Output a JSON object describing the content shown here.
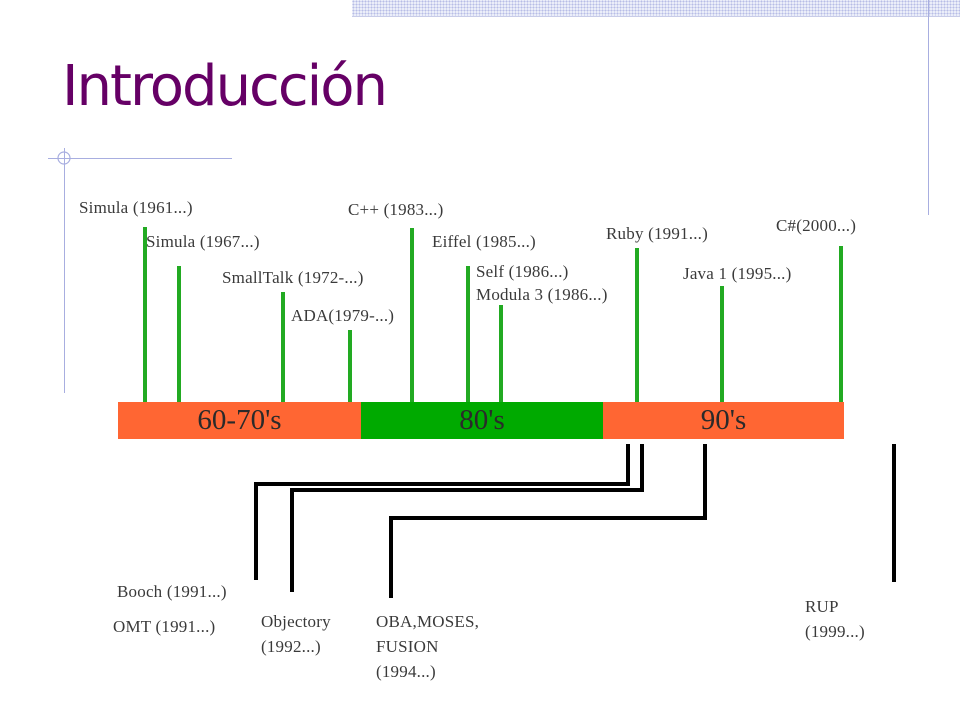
{
  "slide": {
    "title": "Introducción"
  },
  "timeline": {
    "colors": {
      "segment_60_70": "#ff6633",
      "segment_80": "#00aa00",
      "segment_90": "#ff6633",
      "languages": "#22aa22",
      "methods": "#000000"
    },
    "segments": [
      "60-70's",
      "80's",
      "90's"
    ],
    "languages": [
      "Simula  (1961...)",
      "Simula  (1967...)",
      "SmallTalk (1972-...)",
      "ADA(1979-...)",
      "C++ (1983...)",
      "Eiffel  (1985...)",
      "Self  (1986...)",
      "Modula 3  (1986...)",
      "Ruby  (1991...)",
      "Java 1  (1995...)",
      "C#(2000...)"
    ],
    "methods": {
      "booch": "Booch (1991...)",
      "omt": "OMT (1991...)",
      "objectory": [
        "Objectory",
        "(1992...)"
      ],
      "oba": [
        "OBA,MOSES,",
        "FUSION",
        "(1994...)"
      ],
      "rup": [
        "RUP",
        "(1999...)"
      ]
    }
  }
}
